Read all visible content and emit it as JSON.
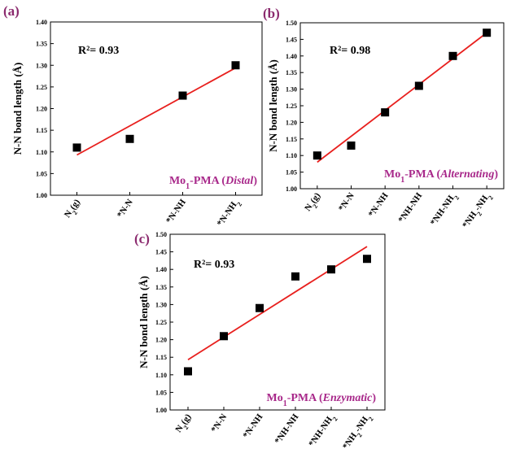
{
  "chart_data": [
    {
      "type": "scatter",
      "panel": "(a)",
      "ylabel": "N-N bond length (Å)",
      "categories": [
        "N₂(g)",
        "*N-N",
        "*N-NH",
        "*N-NH₂"
      ],
      "values": [
        1.11,
        1.13,
        1.23,
        1.3
      ],
      "fit_line": [
        1.093,
        1.294
      ],
      "ylim": [
        1.0,
        1.4
      ],
      "yticks": [
        "1.00",
        "1.05",
        "1.10",
        "1.15",
        "1.20",
        "1.25",
        "1.30",
        "1.35",
        "1.40"
      ],
      "r2_label": "R²= 0.93",
      "caption": {
        "prefix": "Mo",
        "sub": "1",
        "mid": "-PMA (",
        "italic": "Distal",
        "suffix": ")"
      },
      "marker_color": "#000000",
      "fit_color": "#E8201E",
      "grid": false
    },
    {
      "type": "scatter",
      "panel": "(b)",
      "ylabel": "N-N bond length (Å)",
      "categories": [
        "N₂(g)",
        "*N-N",
        "*N-NH",
        "*NH-NH",
        "*NH-NH₂",
        "*NH₂-NH₂"
      ],
      "values": [
        1.1,
        1.13,
        1.23,
        1.31,
        1.4,
        1.47
      ],
      "fit_line": [
        1.08,
        1.47
      ],
      "ylim": [
        1.0,
        1.5
      ],
      "yticks": [
        "1.00",
        "1.05",
        "1.10",
        "1.15",
        "1.20",
        "1.25",
        "1.30",
        "1.35",
        "1.40",
        "1.45",
        "1.50"
      ],
      "r2_label": "R²= 0.98",
      "caption": {
        "prefix": "Mo",
        "sub": "1",
        "mid": "-PMA (",
        "italic": "Alternating",
        "suffix": ")"
      },
      "marker_color": "#000000",
      "fit_color": "#E8201E",
      "grid": false
    },
    {
      "type": "scatter",
      "panel": "(c)",
      "ylabel": "N-N bond length (Å)",
      "categories": [
        "N₂(g)",
        "*N-N",
        "*N-NH",
        "*NH-NH",
        "*NH-NH₂",
        "*NH₂-NH₂"
      ],
      "values": [
        1.11,
        1.21,
        1.29,
        1.38,
        1.4,
        1.43
      ],
      "fit_line": [
        1.143,
        1.465
      ],
      "ylim": [
        1.0,
        1.5
      ],
      "yticks": [
        "1.00",
        "1.05",
        "1.10",
        "1.15",
        "1.20",
        "1.25",
        "1.30",
        "1.35",
        "1.40",
        "1.45",
        "1.50"
      ],
      "r2_label": "R²= 0.93",
      "caption": {
        "prefix": "Mo",
        "sub": "1",
        "mid": "-PMA (",
        "italic": "Enzymatic",
        "suffix": ")"
      },
      "marker_color": "#000000",
      "fit_color": "#E8201E",
      "grid": false
    }
  ]
}
